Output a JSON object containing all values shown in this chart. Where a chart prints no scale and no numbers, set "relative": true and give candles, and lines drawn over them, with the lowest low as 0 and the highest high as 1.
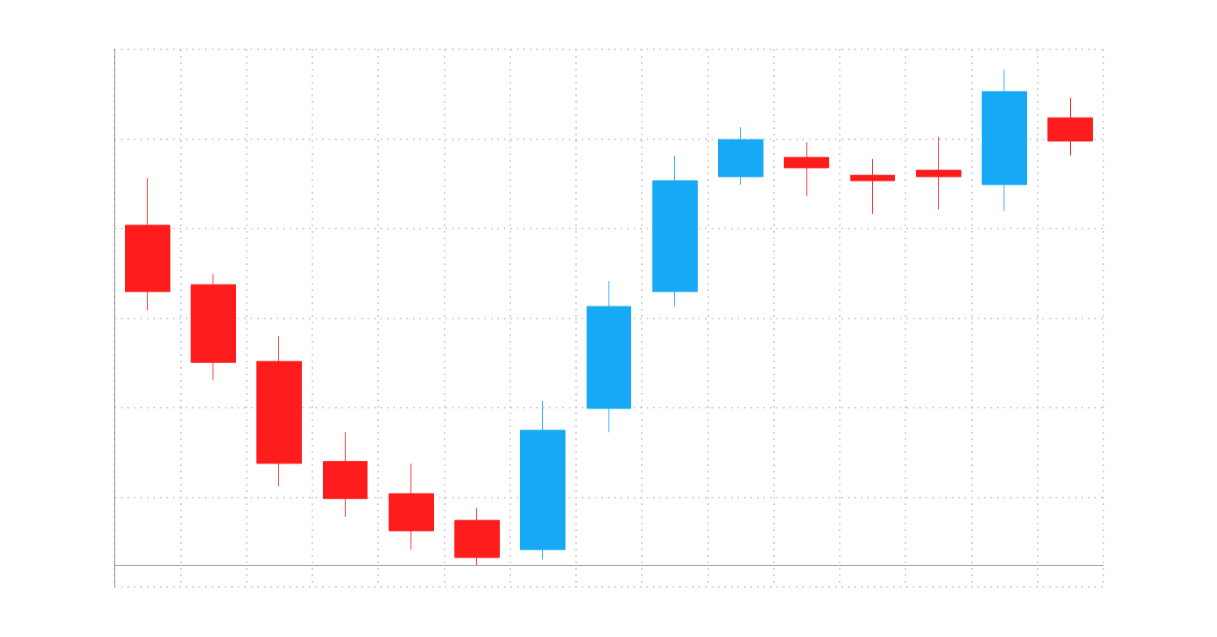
{
  "chart_data": {
    "type": "candlestick",
    "relative": true,
    "grid": true,
    "categories": [
      null,
      null,
      null,
      null,
      null,
      null,
      null,
      null,
      null,
      null,
      null,
      null,
      null,
      null,
      null
    ],
    "ohlc": [
      [
        0.686,
        0.781,
        0.514,
        0.552
      ],
      [
        0.566,
        0.588,
        0.373,
        0.409
      ],
      [
        0.411,
        0.462,
        0.159,
        0.205
      ],
      [
        0.209,
        0.268,
        0.097,
        0.134
      ],
      [
        0.144,
        0.205,
        0.031,
        0.069
      ],
      [
        0.09,
        0.115,
        0,
        0.015
      ],
      [
        0.031,
        0.331,
        0.011,
        0.272
      ],
      [
        0.316,
        0.573,
        0.268,
        0.522
      ],
      [
        0.552,
        0.826,
        0.522,
        0.776
      ],
      [
        0.784,
        0.884,
        0.768,
        0.859
      ],
      [
        0.823,
        0.854,
        0.745,
        0.802
      ],
      [
        0.787,
        0.82,
        0.709,
        0.776
      ],
      [
        0.797,
        0.864,
        0.718,
        0.784
      ],
      [
        0.768,
        1,
        0.714,
        0.956
      ],
      [
        0.903,
        0.943,
        0.827,
        0.856
      ]
    ],
    "colors": [
      "#ff1c1c",
      "#ff1c1c",
      "#ff1c1c",
      "#ff1c1c",
      "#ff1c1c",
      "#ff1c1c",
      "#17a9f5",
      "#17a9f5",
      "#17a9f5",
      "#17a9f5",
      "#ff1c1c",
      "#ff1c1c",
      "#ff1c1c",
      "#17a9f5",
      "#ff1c1c"
    ]
  }
}
